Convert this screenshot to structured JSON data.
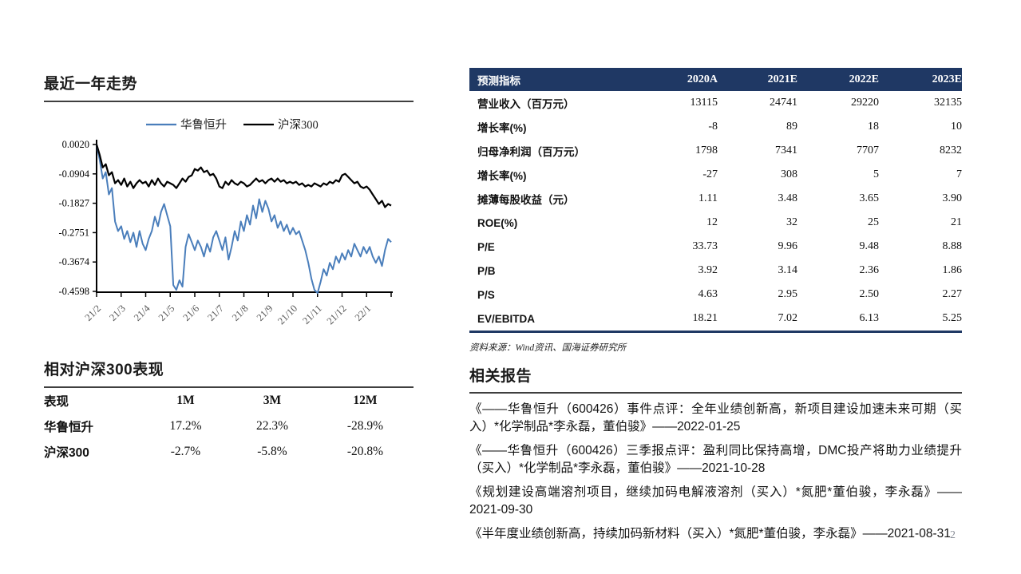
{
  "page": {
    "number": "2"
  },
  "left": {
    "trend_title": "最近一年走势",
    "performance_table": {
      "title": "相对沪深300表现",
      "columns": [
        "表现",
        "1M",
        "3M",
        "12M"
      ],
      "rows": [
        {
          "label": "华鲁恒升",
          "values": [
            "17.2%",
            "22.3%",
            "-28.9%"
          ]
        },
        {
          "label": "沪深300",
          "values": [
            "-2.7%",
            "-5.8%",
            "-20.8%"
          ]
        }
      ]
    }
  },
  "chart_data": {
    "type": "line",
    "title": "最近一年走势",
    "legend_position": "top",
    "grid": false,
    "ylim": [
      -0.4598,
      0.002
    ],
    "y_ticks": [
      "0.0020",
      "-0.0904",
      "-0.1827",
      "-0.2751",
      "-0.3674",
      "-0.4598"
    ],
    "x_labels": [
      "21/2",
      "21/3",
      "21/4",
      "21/5",
      "21/6",
      "21/7",
      "21/8",
      "21/9",
      "21/10",
      "21/11",
      "21/12",
      "22/1"
    ],
    "series": [
      {
        "name": "华鲁恒升",
        "color": "#4a7ebb",
        "values": [
          0.002,
          -0.045,
          -0.105,
          -0.085,
          -0.155,
          -0.135,
          -0.24,
          -0.27,
          -0.255,
          -0.295,
          -0.27,
          -0.305,
          -0.275,
          -0.32,
          -0.27,
          -0.31,
          -0.33,
          -0.295,
          -0.27,
          -0.225,
          -0.255,
          -0.21,
          -0.185,
          -0.22,
          -0.255,
          -0.44,
          -0.455,
          -0.425,
          -0.445,
          -0.32,
          -0.28,
          -0.305,
          -0.33,
          -0.3,
          -0.32,
          -0.35,
          -0.31,
          -0.335,
          -0.29,
          -0.27,
          -0.3,
          -0.33,
          -0.29,
          -0.36,
          -0.32,
          -0.27,
          -0.3,
          -0.24,
          -0.27,
          -0.22,
          -0.25,
          -0.19,
          -0.23,
          -0.17,
          -0.21,
          -0.175,
          -0.2,
          -0.24,
          -0.22,
          -0.26,
          -0.24,
          -0.27,
          -0.25,
          -0.28,
          -0.26,
          -0.28,
          -0.27,
          -0.3,
          -0.33,
          -0.37,
          -0.42,
          -0.455,
          -0.465,
          -0.43,
          -0.39,
          -0.41,
          -0.37,
          -0.39,
          -0.35,
          -0.37,
          -0.34,
          -0.36,
          -0.33,
          -0.35,
          -0.31,
          -0.33,
          -0.35,
          -0.32,
          -0.34,
          -0.32,
          -0.35,
          -0.37,
          -0.35,
          -0.38,
          -0.33,
          -0.295,
          -0.305
        ]
      },
      {
        "name": "沪深300",
        "color": "#000000",
        "values": [
          0.002,
          -0.03,
          -0.07,
          -0.06,
          -0.095,
          -0.085,
          -0.12,
          -0.11,
          -0.125,
          -0.105,
          -0.13,
          -0.115,
          -0.135,
          -0.12,
          -0.11,
          -0.12,
          -0.115,
          -0.13,
          -0.11,
          -0.125,
          -0.105,
          -0.12,
          -0.13,
          -0.115,
          -0.12,
          -0.125,
          -0.135,
          -0.12,
          -0.105,
          -0.115,
          -0.1,
          -0.095,
          -0.075,
          -0.08,
          -0.07,
          -0.085,
          -0.08,
          -0.095,
          -0.09,
          -0.105,
          -0.13,
          -0.135,
          -0.115,
          -0.125,
          -0.11,
          -0.12,
          -0.125,
          -0.115,
          -0.12,
          -0.13,
          -0.125,
          -0.115,
          -0.105,
          -0.115,
          -0.11,
          -0.12,
          -0.11,
          -0.105,
          -0.115,
          -0.105,
          -0.115,
          -0.11,
          -0.12,
          -0.115,
          -0.12,
          -0.115,
          -0.125,
          -0.12,
          -0.13,
          -0.125,
          -0.13,
          -0.12,
          -0.125,
          -0.13,
          -0.12,
          -0.125,
          -0.115,
          -0.12,
          -0.11,
          -0.115,
          -0.095,
          -0.09,
          -0.1,
          -0.11,
          -0.12,
          -0.115,
          -0.13,
          -0.135,
          -0.13,
          -0.14,
          -0.155,
          -0.17,
          -0.185,
          -0.175,
          -0.195,
          -0.185,
          -0.19
        ]
      }
    ]
  },
  "forecast_table": {
    "header": [
      "预测指标",
      "2020A",
      "2021E",
      "2022E",
      "2023E"
    ],
    "rows": [
      [
        "营业收入（百万元）",
        "13115",
        "24741",
        "29220",
        "32135"
      ],
      [
        "增长率(%)",
        "-8",
        "89",
        "18",
        "10"
      ],
      [
        "归母净利润（百万元）",
        "1798",
        "7341",
        "7707",
        "8232"
      ],
      [
        "增长率(%)",
        "-27",
        "308",
        "5",
        "7"
      ],
      [
        "摊薄每股收益（元）",
        "1.11",
        "3.48",
        "3.65",
        "3.90"
      ],
      [
        "ROE(%)",
        "12",
        "32",
        "25",
        "21"
      ],
      [
        "P/E",
        "33.73",
        "9.96",
        "9.48",
        "8.88"
      ],
      [
        "P/B",
        "3.92",
        "3.14",
        "2.36",
        "1.86"
      ],
      [
        "P/S",
        "4.63",
        "2.95",
        "2.50",
        "2.27"
      ],
      [
        "EV/EBITDA",
        "18.21",
        "7.02",
        "6.13",
        "5.25"
      ]
    ],
    "source": "资料来源：Wind资讯、国海证券研究所"
  },
  "reports": {
    "title": "相关报告",
    "items": [
      "《——华鲁恒升（600426）事件点评：全年业绩创新高，新项目建设加速未来可期（买入）*化学制品*李永磊，董伯骏》——2022-01-25",
      "《——华鲁恒升（600426）三季报点评：盈利同比保持高增，DMC投产将助力业绩提升（买入）*化学制品*李永磊，董伯骏》——2021-10-28",
      "《规划建设高端溶剂项目，继续加码电解液溶剂（买入）*氮肥*董伯骏，李永磊》——2021-09-30",
      "《半年度业绩创新高，持续加码新材料（买入）*氮肥*董伯骏，李永磊》——2021-08-31"
    ]
  },
  "colors": {
    "accent_navy": "#1f3864",
    "series_blue": "#4a7ebb",
    "series_black": "#000000",
    "rule_gray": "#3f3f3f",
    "pagenum_gray": "#8a8f98"
  }
}
